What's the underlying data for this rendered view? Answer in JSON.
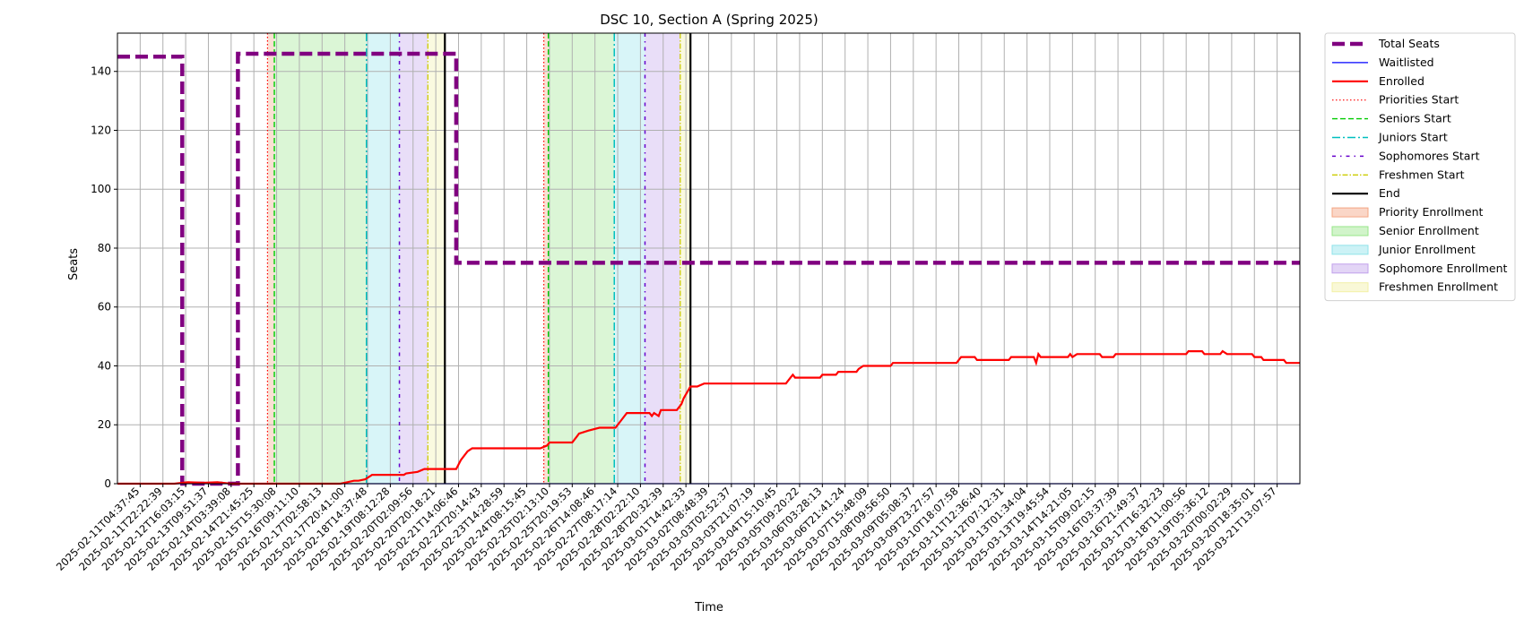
{
  "chart_data": {
    "type": "line",
    "title": "DSC 10, Section A (Spring 2025)",
    "xlabel": "Time",
    "ylabel": "Seats",
    "ylim": [
      0,
      153
    ],
    "yticks": [
      0,
      20,
      40,
      60,
      80,
      100,
      120,
      140
    ],
    "grid": true,
    "legend_position": "outside-right",
    "x_ticks": [
      "2025-02-11T04:37:45",
      "2025-02-11T22:22:39",
      "2025-02-12T16:03:15",
      "2025-02-13T09:51:37",
      "2025-02-14T03:39:08",
      "2025-02-14T21:45:25",
      "2025-02-15T15:30:08",
      "2025-02-16T09:11:10",
      "2025-02-17T02:58:13",
      "2025-02-17T20:41:00",
      "2025-02-18T14:37:48",
      "2025-02-19T08:12:28",
      "2025-02-20T02:09:56",
      "2025-02-20T20:18:21",
      "2025-02-21T14:06:46",
      "2025-02-22T20:14:43",
      "2025-02-23T14:28:59",
      "2025-02-24T08:15:45",
      "2025-02-25T02:13:10",
      "2025-02-25T20:19:53",
      "2025-02-26T14:08:46",
      "2025-02-27T08:17:14",
      "2025-02-28T02:22:10",
      "2025-02-28T20:32:39",
      "2025-03-01T14:42:33",
      "2025-03-02T08:48:39",
      "2025-03-03T02:52:37",
      "2025-03-03T21:07:19",
      "2025-03-04T15:10:45",
      "2025-03-05T09:20:22",
      "2025-03-06T03:28:13",
      "2025-03-06T21:41:24",
      "2025-03-07T15:48:09",
      "2025-03-08T09:56:50",
      "2025-03-09T05:08:37",
      "2025-03-09T23:27:57",
      "2025-03-10T18:07:58",
      "2025-03-11T12:36:40",
      "2025-03-12T07:12:31",
      "2025-03-13T01:34:04",
      "2025-03-13T19:45:54",
      "2025-03-14T14:21:05",
      "2025-03-15T09:02:15",
      "2025-03-16T03:37:39",
      "2025-03-16T21:49:37",
      "2025-03-17T16:32:23",
      "2025-03-18T11:00:56",
      "2025-03-19T05:36:12",
      "2025-03-20T00:02:29",
      "2025-03-20T18:35:01",
      "2025-03-21T13:07:57"
    ],
    "x_range": [
      -1,
      51
    ],
    "series": [
      {
        "name": "Total Seats",
        "color": "#800080",
        "style": "dashed-thick",
        "points": [
          [
            -1,
            145
          ],
          [
            1.85,
            145
          ],
          [
            1.85,
            0
          ],
          [
            4.3,
            0
          ],
          [
            4.3,
            146
          ],
          [
            13.9,
            146
          ],
          [
            13.9,
            75
          ],
          [
            51,
            75
          ]
        ]
      },
      {
        "name": "Waitlisted",
        "color": "#0000ff",
        "style": "solid-thin",
        "points": [
          [
            -1,
            0
          ],
          [
            51,
            0
          ]
        ]
      },
      {
        "name": "Enrolled",
        "color": "#ff0000",
        "style": "solid",
        "points": [
          [
            -1,
            0
          ],
          [
            1.5,
            0
          ],
          [
            2.1,
            0.5
          ],
          [
            2.8,
            0.3
          ],
          [
            3.4,
            0.5
          ],
          [
            4.0,
            0
          ],
          [
            8.8,
            0
          ],
          [
            9.4,
            1
          ],
          [
            9.6,
            1
          ],
          [
            9.9,
            1.5
          ],
          [
            10.2,
            3
          ],
          [
            11.6,
            3
          ],
          [
            11.7,
            3.5
          ],
          [
            12.2,
            4
          ],
          [
            12.5,
            5
          ],
          [
            13.9,
            5
          ],
          [
            14.1,
            8
          ],
          [
            14.4,
            11
          ],
          [
            14.6,
            12
          ],
          [
            17.6,
            12
          ],
          [
            17.9,
            13
          ],
          [
            18.0,
            14
          ],
          [
            19.0,
            14
          ],
          [
            19.2,
            16
          ],
          [
            19.3,
            17
          ],
          [
            19.7,
            18
          ],
          [
            20.2,
            19
          ],
          [
            20.9,
            19
          ],
          [
            21.1,
            21
          ],
          [
            21.4,
            24
          ],
          [
            22.4,
            24
          ],
          [
            22.5,
            23
          ],
          [
            22.6,
            24
          ],
          [
            22.8,
            23
          ],
          [
            22.9,
            25
          ],
          [
            23.6,
            25
          ],
          [
            23.8,
            27
          ],
          [
            23.9,
            29
          ],
          [
            24.2,
            33
          ],
          [
            24.5,
            33
          ],
          [
            24.8,
            34
          ],
          [
            28.4,
            34
          ],
          [
            28.6,
            36
          ],
          [
            28.7,
            37
          ],
          [
            28.8,
            36
          ],
          [
            29.9,
            36
          ],
          [
            30.0,
            37
          ],
          [
            30.6,
            37
          ],
          [
            30.7,
            38
          ],
          [
            31.5,
            38
          ],
          [
            31.6,
            39
          ],
          [
            31.8,
            40
          ],
          [
            33.0,
            40
          ],
          [
            33.1,
            41
          ],
          [
            35.9,
            41
          ],
          [
            36.1,
            43
          ],
          [
            36.7,
            43
          ],
          [
            36.8,
            42
          ],
          [
            38.2,
            42
          ],
          [
            38.3,
            43
          ],
          [
            39.3,
            43
          ],
          [
            39.4,
            41
          ],
          [
            39.5,
            44
          ],
          [
            39.6,
            43
          ],
          [
            40.8,
            43
          ],
          [
            40.9,
            44
          ],
          [
            41.0,
            43
          ],
          [
            41.2,
            44
          ],
          [
            42.2,
            44
          ],
          [
            42.3,
            43
          ],
          [
            42.8,
            43
          ],
          [
            42.9,
            44
          ],
          [
            46.0,
            44
          ],
          [
            46.1,
            45
          ],
          [
            46.7,
            45
          ],
          [
            46.8,
            44
          ],
          [
            47.5,
            44
          ],
          [
            47.6,
            45
          ],
          [
            47.8,
            44
          ],
          [
            48.9,
            44
          ],
          [
            49.0,
            43
          ],
          [
            49.3,
            43
          ],
          [
            49.4,
            42
          ],
          [
            50.3,
            42
          ],
          [
            50.4,
            41
          ],
          [
            51,
            41
          ]
        ]
      }
    ],
    "vlines": [
      {
        "name": "Priorities Start",
        "color": "#ff0000",
        "style": "dotted",
        "x": [
          5.6,
          17.75
        ]
      },
      {
        "name": "Seniors Start",
        "color": "#00cc00",
        "style": "dashed",
        "x": [
          5.9,
          17.95
        ]
      },
      {
        "name": "Juniors Start",
        "color": "#00bfbf",
        "style": "dashdot",
        "x": [
          9.95,
          20.85
        ]
      },
      {
        "name": "Sophomores Start",
        "color": "#6600cc",
        "style": "sparse-dashdot",
        "x": [
          11.4,
          22.2
        ]
      },
      {
        "name": "Freshmen Start",
        "color": "#cccc00",
        "style": "dashdot-thin",
        "x": [
          12.65,
          23.75
        ]
      },
      {
        "name": "End",
        "color": "#000000",
        "style": "solid",
        "x": [
          13.4,
          24.2
        ]
      }
    ],
    "spans": [
      {
        "name": "Priority Enrollment",
        "color": "#f4a582",
        "ranges": [
          [
            5.6,
            5.9
          ],
          [
            17.75,
            17.95
          ]
        ]
      },
      {
        "name": "Senior Enrollment",
        "color": "#98e68a",
        "ranges": [
          [
            5.9,
            9.95
          ],
          [
            17.95,
            20.85
          ]
        ]
      },
      {
        "name": "Junior Enrollment",
        "color": "#8fe3ea",
        "ranges": [
          [
            9.95,
            11.4
          ],
          [
            20.85,
            22.2
          ]
        ]
      },
      {
        "name": "Sophomore Enrollment",
        "color": "#c1a1ec",
        "ranges": [
          [
            11.4,
            12.65
          ],
          [
            22.2,
            23.75
          ]
        ]
      },
      {
        "name": "Freshmen Enrollment",
        "color": "#f2f0a6",
        "ranges": [
          [
            12.65,
            13.4
          ],
          [
            23.75,
            24.2
          ]
        ]
      }
    ],
    "legend": [
      {
        "label": "Total Seats",
        "kind": "line",
        "color": "#800080",
        "style": "dashed-thick"
      },
      {
        "label": "Waitlisted",
        "kind": "line",
        "color": "#0000ff",
        "style": "solid-thin"
      },
      {
        "label": "Enrolled",
        "kind": "line",
        "color": "#ff0000",
        "style": "solid"
      },
      {
        "label": "Priorities Start",
        "kind": "line",
        "color": "#ff0000",
        "style": "dotted"
      },
      {
        "label": "Seniors Start",
        "kind": "line",
        "color": "#00cc00",
        "style": "dashed"
      },
      {
        "label": "Juniors Start",
        "kind": "line",
        "color": "#00bfbf",
        "style": "dashdot"
      },
      {
        "label": "Sophomores Start",
        "kind": "line",
        "color": "#6600cc",
        "style": "sparse-dashdot"
      },
      {
        "label": "Freshmen Start",
        "kind": "line",
        "color": "#cccc00",
        "style": "dashdot-thin"
      },
      {
        "label": "End",
        "kind": "line",
        "color": "#000000",
        "style": "solid"
      },
      {
        "label": "Priority Enrollment",
        "kind": "patch",
        "color": "#f4a582"
      },
      {
        "label": "Senior Enrollment",
        "kind": "patch",
        "color": "#98e68a"
      },
      {
        "label": "Junior Enrollment",
        "kind": "patch",
        "color": "#8fe3ea"
      },
      {
        "label": "Sophomore Enrollment",
        "kind": "patch",
        "color": "#c1a1ec"
      },
      {
        "label": "Freshmen Enrollment",
        "kind": "patch",
        "color": "#f2f0a6"
      }
    ]
  }
}
